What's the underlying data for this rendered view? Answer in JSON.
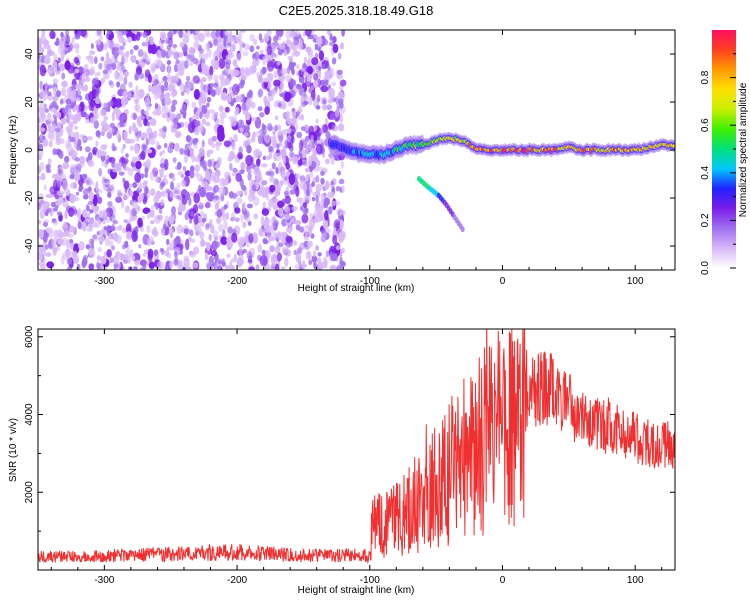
{
  "title": "C2E5.2025.318.18.49.G18",
  "chart_data": [
    {
      "type": "heatmap",
      "xlabel": "Height of straight line (km)",
      "ylabel": "Frequency (Hz)",
      "xlim": [
        -350,
        130
      ],
      "ylim": [
        -50,
        50
      ],
      "xticks": [
        -300,
        -200,
        -100,
        0,
        100
      ],
      "yticks": [
        -40,
        -20,
        0,
        20,
        40
      ],
      "grid": false,
      "colorbar": {
        "label": "Normalized spectral amplitude",
        "range": [
          0,
          1
        ],
        "ticks": [
          "0.0",
          "0.2",
          "0.4",
          "0.6",
          "0.8"
        ],
        "colors": [
          "#ffffff",
          "#d8b8f8",
          "#a070f0",
          "#7a1ee8",
          "#2020ff",
          "#00c8ff",
          "#00e07a",
          "#40f000",
          "#c8f000",
          "#ffe000",
          "#ff9a00",
          "#ff4020",
          "#ff1060"
        ]
      },
      "noise_region": {
        "x_start": -350,
        "x_end": -120,
        "amplitude": 0.15
      },
      "signal_track": [
        {
          "x": -130,
          "y": 3,
          "amp": 0.3
        },
        {
          "x": -120,
          "y": 1,
          "amp": 0.35
        },
        {
          "x": -110,
          "y": -1,
          "amp": 0.4
        },
        {
          "x": -100,
          "y": -2,
          "amp": 0.45
        },
        {
          "x": -90,
          "y": -2,
          "amp": 0.45
        },
        {
          "x": -80,
          "y": 0,
          "amp": 0.5
        },
        {
          "x": -70,
          "y": 2,
          "amp": 0.55
        },
        {
          "x": -60,
          "y": 2,
          "amp": 0.6
        },
        {
          "x": -50,
          "y": 4,
          "amp": 0.7
        },
        {
          "x": -40,
          "y": 5,
          "amp": 0.75
        },
        {
          "x": -30,
          "y": 4,
          "amp": 0.75
        },
        {
          "x": -20,
          "y": 1,
          "amp": 0.85
        },
        {
          "x": -10,
          "y": 0,
          "amp": 0.9
        },
        {
          "x": 0,
          "y": 0,
          "amp": 0.95
        },
        {
          "x": 10,
          "y": 0,
          "amp": 0.95
        },
        {
          "x": 20,
          "y": 0,
          "amp": 0.95
        },
        {
          "x": 30,
          "y": 0,
          "amp": 0.9
        },
        {
          "x": 40,
          "y": 0,
          "amp": 0.9
        },
        {
          "x": 50,
          "y": 1,
          "amp": 0.85
        },
        {
          "x": 60,
          "y": 0,
          "amp": 0.85
        },
        {
          "x": 70,
          "y": 0,
          "amp": 0.85
        },
        {
          "x": 80,
          "y": 0,
          "amp": 0.85
        },
        {
          "x": 90,
          "y": 0,
          "amp": 0.85
        },
        {
          "x": 100,
          "y": 0,
          "amp": 0.85
        },
        {
          "x": 110,
          "y": 1,
          "amp": 0.8
        },
        {
          "x": 120,
          "y": 2,
          "amp": 0.8
        },
        {
          "x": 130,
          "y": 2,
          "amp": 0.8
        }
      ],
      "secondary_track": [
        {
          "x": -63,
          "y": -12,
          "amp": 0.5
        },
        {
          "x": -57,
          "y": -15,
          "amp": 0.5
        },
        {
          "x": -48,
          "y": -19,
          "amp": 0.35
        },
        {
          "x": -42,
          "y": -23,
          "amp": 0.25
        },
        {
          "x": -36,
          "y": -28,
          "amp": 0.2
        },
        {
          "x": -30,
          "y": -33,
          "amp": 0.15
        }
      ]
    },
    {
      "type": "line",
      "xlabel": "Height of straight line (km)",
      "ylabel": "SNR (10 * v/v)",
      "xlim": [
        -350,
        130
      ],
      "ylim": [
        0,
        6200
      ],
      "xticks": [
        -300,
        -200,
        -100,
        0,
        100
      ],
      "yticks": [
        2000,
        4000,
        6000
      ],
      "grid": false,
      "series": [
        {
          "color": "#f03030",
          "x": [
            -350,
            -300,
            -250,
            -200,
            -150,
            -100,
            -98,
            -90,
            -80,
            -70,
            -60,
            -50,
            -40,
            -30,
            -20,
            -10,
            0,
            10,
            20,
            30,
            40,
            50,
            60,
            70,
            80,
            90,
            100,
            110,
            120,
            130
          ],
          "y": [
            350,
            380,
            430,
            480,
            390,
            400,
            1200,
            1300,
            1400,
            1500,
            1900,
            2300,
            2700,
            3000,
            3300,
            3600,
            3900,
            4300,
            4600,
            4800,
            4700,
            4300,
            4000,
            3900,
            3800,
            3600,
            3500,
            3400,
            3300,
            3200
          ]
        }
      ]
    }
  ]
}
